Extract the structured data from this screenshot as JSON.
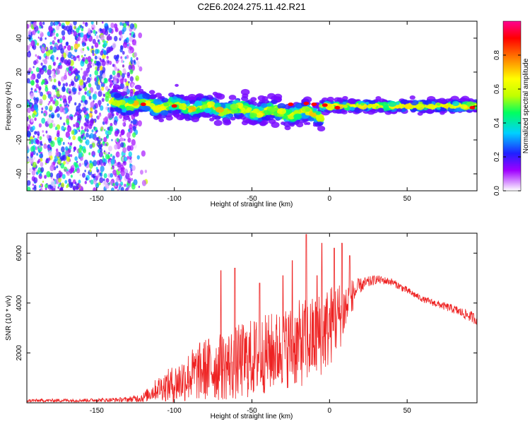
{
  "title": "C2E6.2024.275.11.42.R21",
  "chart_data": [
    {
      "type": "heatmap",
      "xlabel": "Height of straight line (km)",
      "ylabel": "Frequency (Hz)",
      "xlim": [
        -195,
        95
      ],
      "ylim": [
        -50,
        50
      ],
      "xticks": [
        -150,
        -100,
        -50,
        0,
        50
      ],
      "yticks": [
        -40,
        -20,
        0,
        20,
        40
      ],
      "colorbar": {
        "label": "Normalized spectral amplitude",
        "range": [
          0.0,
          1.0
        ],
        "ticks": [
          "0.0",
          "0.2",
          "0.4",
          "0.6",
          "0.8"
        ],
        "colors": [
          "#ffffff",
          "#a000ff",
          "#2020ff",
          "#00d0ff",
          "#00ff60",
          "#c0ff00",
          "#ffff00",
          "#ff8000",
          "#ff0000",
          "#ff0090"
        ]
      },
      "description_bands": [
        {
          "x_range": [
            -195,
            -125
          ],
          "content": "scattered noise across all frequencies"
        },
        {
          "x_range": [
            -140,
            -5
          ],
          "center_hz": [
            2,
            -5
          ],
          "halfwidth_hz": 6
        },
        {
          "x_range": [
            -5,
            95
          ],
          "center_hz": [
            0,
            0
          ],
          "halfwidth_hz": 3
        }
      ]
    },
    {
      "type": "line",
      "xlabel": "Height of straight line (km)",
      "ylabel": "SNR (10 * v/v)",
      "xlim": [
        -195,
        95
      ],
      "ylim": [
        0,
        6800
      ],
      "xticks": [
        -150,
        -100,
        -50,
        0,
        50
      ],
      "yticks": [
        2000,
        4000,
        6000
      ],
      "series": [
        {
          "color": "#ee2222",
          "envelope": {
            "x": [
              -195,
              -150,
              -130,
              -120,
              -110,
              -100,
              -90,
              -80,
              -70,
              -60,
              -50,
              -40,
              -30,
              -20,
              -10,
              0,
              10,
              20,
              30,
              40,
              50,
              60,
              70,
              80,
              95
            ],
            "mean": [
              100,
              120,
              150,
              250,
              700,
              900,
              1300,
              1600,
              1700,
              1900,
              2100,
              2300,
              2500,
              2700,
              2900,
              3400,
              4000,
              4700,
              4950,
              4850,
              4500,
              4150,
              3950,
              3750,
              3350
            ],
            "spread": [
              80,
              90,
              120,
              250,
              600,
              1000,
              1300,
              1600,
              1700,
              1900,
              2000,
              2000,
              2000,
              2200,
              2200,
              2100,
              1500,
              500,
              300,
              250,
              250,
              200,
              250,
              300,
              400
            ]
          },
          "peaks": [
            {
              "x": -70,
              "y": 5300
            },
            {
              "x": -61,
              "y": 5400
            },
            {
              "x": -45,
              "y": 4800
            },
            {
              "x": -30,
              "y": 5100
            },
            {
              "x": -24,
              "y": 5700
            },
            {
              "x": -15,
              "y": 6750
            },
            {
              "x": -8,
              "y": 5100
            },
            {
              "x": -5,
              "y": 6400
            },
            {
              "x": 3,
              "y": 6200
            },
            {
              "x": 8,
              "y": 6400
            },
            {
              "x": 13,
              "y": 5900
            }
          ]
        }
      ]
    }
  ]
}
